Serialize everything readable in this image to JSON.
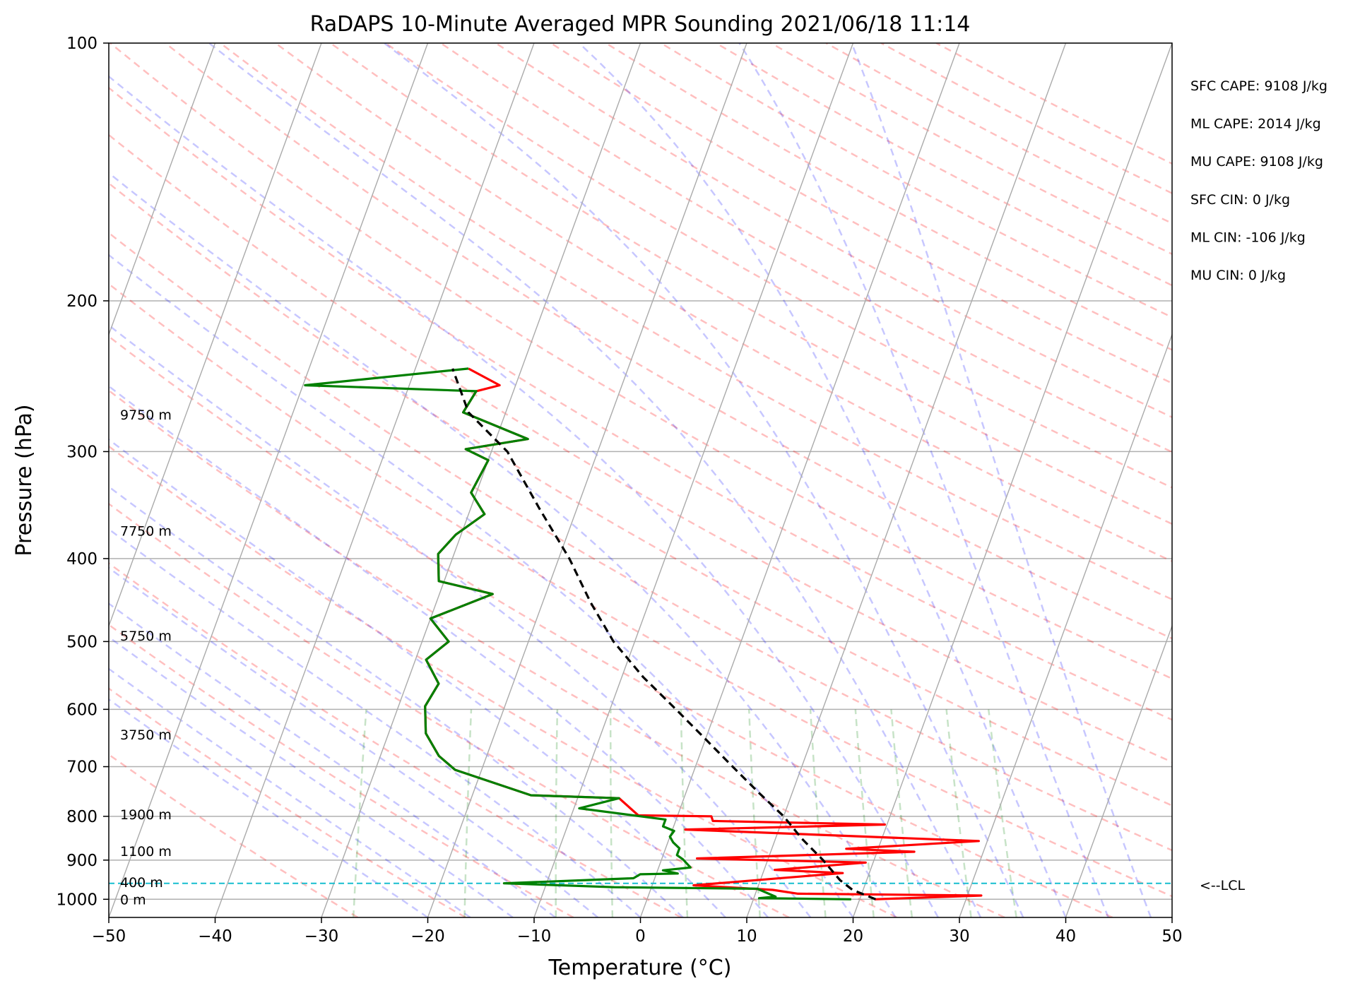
{
  "chart_data": {
    "type": "line",
    "title": "RaDAPS 10-Minute Averaged MPR Sounding 2021/06/18 11:14",
    "xlabel": "Temperature (°C)",
    "ylabel": "Pressure (hPa)",
    "xlim": [
      -50,
      50
    ],
    "ylim": [
      1050,
      100
    ],
    "y_scale": "log",
    "grid": true,
    "x_ticks": [
      "−50",
      "−40",
      "−30",
      "−20",
      "−10",
      "0",
      "10",
      "20",
      "30",
      "40",
      "50"
    ],
    "y_ticks": [
      "100",
      "200",
      "300",
      "400",
      "500",
      "600",
      "700",
      "800",
      "900",
      "1000"
    ],
    "stats": [
      "SFC CAPE: 9108 J/kg",
      "ML CAPE: 2014 J/kg",
      "MU CAPE: 9108 J/kg",
      "SFC CIN: 0 J/kg",
      "ML CIN: -106 J/kg",
      "MU CIN: 0 J/kg"
    ],
    "height_labels": [
      {
        "text": "9750 m",
        "p": 272
      },
      {
        "text": "7750 m",
        "p": 372
      },
      {
        "text": "5750 m",
        "p": 493
      },
      {
        "text": "3750 m",
        "p": 643
      },
      {
        "text": "1900 m",
        "p": 797
      },
      {
        "text": "1100 m",
        "p": 880
      },
      {
        "text": "400 m",
        "p": 957
      },
      {
        "text": "0 m",
        "p": 1002
      }
    ],
    "lcl": {
      "p": 958,
      "label": "<--LCL"
    },
    "series": [
      {
        "color": "#ff0000",
        "points": [
          [
            21.4,
            1000
          ],
          [
            31.3,
            990
          ],
          [
            14.0,
            985
          ],
          [
            11.5,
            975
          ],
          [
            3.9,
            963
          ],
          [
            17.5,
            932
          ],
          [
            11.0,
            924
          ],
          [
            19.3,
            906
          ],
          [
            3.3,
            896
          ],
          [
            23.5,
            880
          ],
          [
            17.0,
            873
          ],
          [
            29.2,
            855
          ],
          [
            1.2,
            829
          ],
          [
            19.8,
            818
          ],
          [
            3.5,
            810
          ],
          [
            3.2,
            800
          ],
          [
            -3.7,
            798
          ],
          [
            -6.1,
            762
          ],
          [
            -14.5,
            756
          ],
          [
            -22.5,
            706
          ],
          [
            -24.5,
            680
          ],
          [
            -26.5,
            640
          ],
          [
            -27.5,
            595
          ],
          [
            -27.0,
            560
          ],
          [
            -29.0,
            525
          ],
          [
            -27.5,
            500
          ],
          [
            -30.0,
            470
          ],
          [
            -25.0,
            440
          ],
          [
            -30.5,
            425
          ],
          [
            -31.5,
            395
          ],
          [
            -30.5,
            375
          ],
          [
            -28.5,
            355
          ],
          [
            -30.5,
            335
          ],
          [
            -30.0,
            307
          ],
          [
            -32.5,
            298
          ],
          [
            -27.0,
            290
          ],
          [
            -34.0,
            270
          ],
          [
            -33.5,
            255
          ],
          [
            -31.5,
            251
          ],
          [
            -35.0,
            240
          ]
        ]
      },
      {
        "color": "#008000",
        "points": [
          [
            19.2,
            1000
          ],
          [
            10.5,
            997
          ],
          [
            12.0,
            993
          ],
          [
            10.0,
            972
          ],
          [
            -3.5,
            968
          ],
          [
            -14.0,
            958
          ],
          [
            -2.0,
            945
          ],
          [
            -1.5,
            935
          ],
          [
            2.0,
            933
          ],
          [
            0.5,
            925
          ],
          [
            3.0,
            918
          ],
          [
            2.0,
            898
          ],
          [
            1.3,
            888
          ],
          [
            1.3,
            872
          ],
          [
            0.5,
            858
          ],
          [
            0.0,
            845
          ],
          [
            0.2,
            832
          ],
          [
            -1.0,
            822
          ],
          [
            -1.0,
            807
          ],
          [
            -9.5,
            783
          ],
          [
            -6.1,
            762
          ],
          [
            -14.5,
            756
          ],
          [
            -22.5,
            706
          ],
          [
            -24.5,
            680
          ],
          [
            -26.5,
            640
          ],
          [
            -27.5,
            595
          ],
          [
            -27.0,
            560
          ],
          [
            -29.0,
            525
          ],
          [
            -27.5,
            500
          ],
          [
            -30.0,
            470
          ],
          [
            -25.0,
            440
          ],
          [
            -30.5,
            425
          ],
          [
            -31.5,
            395
          ],
          [
            -30.5,
            375
          ],
          [
            -28.5,
            355
          ],
          [
            -30.5,
            335
          ],
          [
            -30.0,
            307
          ],
          [
            -32.5,
            298
          ],
          [
            -27.0,
            290
          ],
          [
            -34.0,
            270
          ],
          [
            -33.5,
            255
          ],
          [
            -49.8,
            251
          ],
          [
            -35.0,
            240
          ]
        ]
      },
      {
        "color": "#000000",
        "dashed": true,
        "points": [
          [
            21.5,
            1000
          ],
          [
            19.0,
            975
          ],
          [
            17.5,
            950
          ],
          [
            15.2,
            900
          ],
          [
            12.5,
            850
          ],
          [
            10.0,
            800
          ],
          [
            6.8,
            750
          ],
          [
            3.5,
            700
          ],
          [
            0.0,
            650
          ],
          [
            -3.8,
            600
          ],
          [
            -8.0,
            550
          ],
          [
            -12.0,
            500
          ],
          [
            -15.5,
            450
          ],
          [
            -19.0,
            400
          ],
          [
            -23.5,
            350
          ],
          [
            -28.5,
            300
          ],
          [
            -33.5,
            270
          ],
          [
            -36.5,
            240
          ]
        ]
      }
    ]
  }
}
